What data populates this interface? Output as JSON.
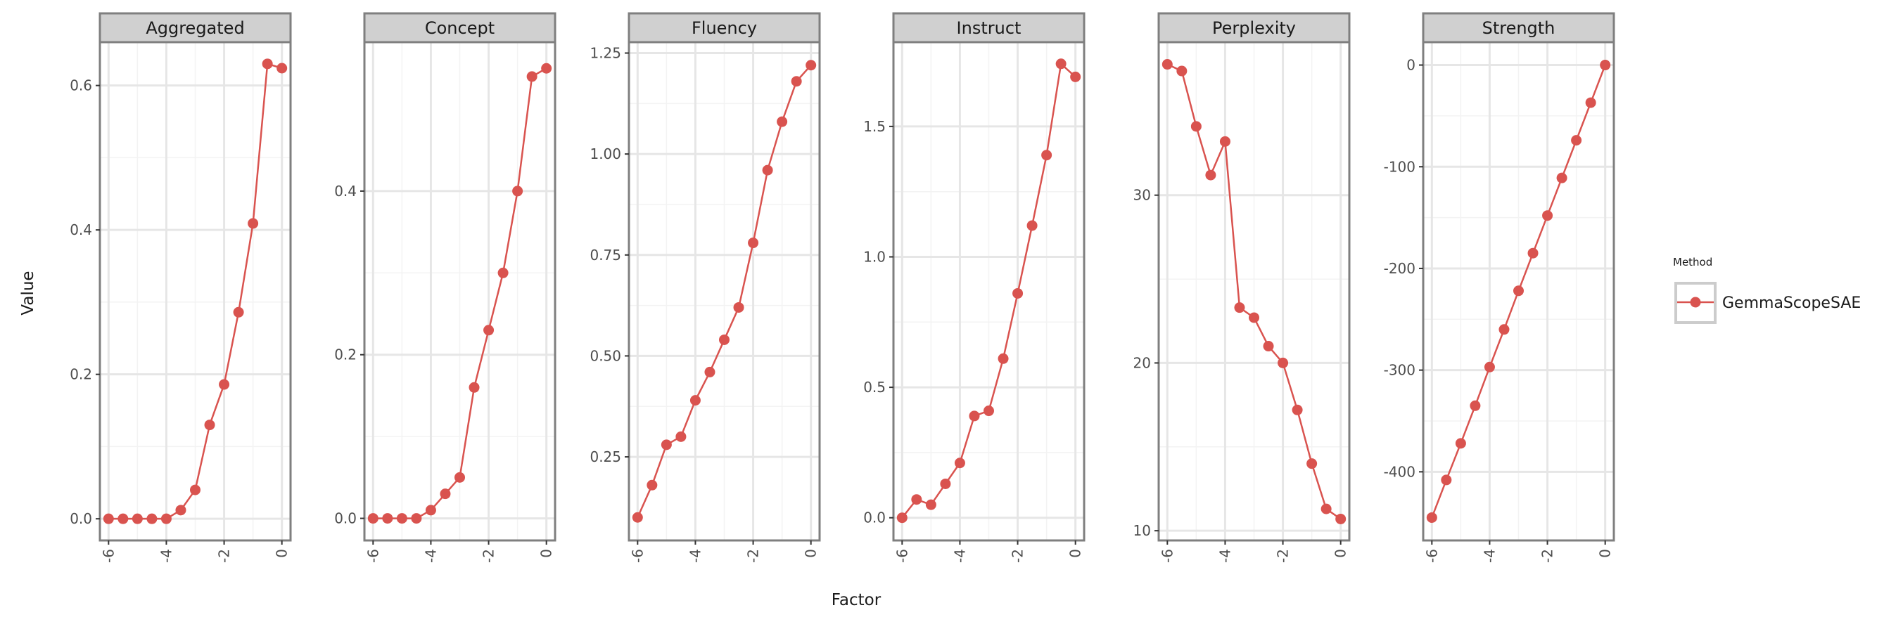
{
  "chart_data": {
    "type": "line",
    "xlabel": "Factor",
    "ylabel": "Value",
    "legend": {
      "title": "Method",
      "position": "right",
      "entries": [
        "GemmaScopeSAE"
      ]
    },
    "colors": {
      "series": "#d9534f",
      "strip_fill": "#d0d0d0",
      "frame": "#7f7f7f",
      "grid_major": "#e6e6e6",
      "grid_minor": "#f3f3f3"
    },
    "grid": true,
    "x": [
      -6,
      -5.5,
      -5,
      -4.5,
      -4,
      -3.5,
      -3,
      -2.5,
      -2,
      -1.5,
      -1,
      -0.5,
      0
    ],
    "x_ticks": [
      -6,
      -4,
      -2,
      0
    ],
    "x_tick_labels": [
      "-6",
      "-4",
      "-2",
      "0"
    ],
    "panels": [
      {
        "title": "Aggregated",
        "xlim": [
          -6.3,
          0.3
        ],
        "ylim": [
          -0.03,
          0.66
        ],
        "y_ticks": [
          0.0,
          0.2,
          0.4,
          0.6
        ],
        "y_tick_labels": [
          "0.0",
          "0.2",
          "0.4",
          "0.6"
        ],
        "series": [
          {
            "name": "GemmaScopeSAE",
            "values": [
              0.0,
              0.0,
              0.0,
              0.0,
              0.0,
              0.012,
              0.04,
              0.13,
              0.186,
              0.286,
              0.409,
              0.63,
              0.624
            ]
          }
        ]
      },
      {
        "title": "Concept",
        "xlim": [
          -6.3,
          0.3
        ],
        "ylim": [
          -0.027,
          0.582
        ],
        "y_ticks": [
          0.0,
          0.2,
          0.4
        ],
        "y_tick_labels": [
          "0.0",
          "0.2",
          "0.4"
        ],
        "series": [
          {
            "name": "GemmaScopeSAE",
            "values": [
              0.0,
              0.0,
              0.0,
              0.0,
              0.01,
              0.03,
              0.05,
              0.16,
              0.23,
              0.3,
              0.4,
              0.54,
              0.55
            ]
          }
        ]
      },
      {
        "title": "Fluency",
        "xlim": [
          -6.3,
          0.3
        ],
        "ylim": [
          0.043,
          1.277
        ],
        "y_ticks": [
          0.25,
          0.5,
          0.75,
          1.0,
          1.25
        ],
        "y_tick_labels": [
          "0.25",
          "0.50",
          "0.75",
          "1.00",
          "1.25"
        ],
        "series": [
          {
            "name": "GemmaScopeSAE",
            "values": [
              0.1,
              0.18,
              0.28,
              0.3,
              0.39,
              0.46,
              0.54,
              0.62,
              0.78,
              0.96,
              1.08,
              1.18,
              1.22
            ]
          }
        ]
      },
      {
        "title": "Instruct",
        "xlim": [
          -6.3,
          0.3
        ],
        "ylim": [
          -0.087,
          1.823
        ],
        "y_ticks": [
          0.0,
          0.5,
          1.0,
          1.5
        ],
        "y_tick_labels": [
          "0.0",
          "0.5",
          "1.0",
          "1.5"
        ],
        "series": [
          {
            "name": "GemmaScopeSAE",
            "values": [
              0.0,
              0.07,
              0.05,
              0.13,
              0.21,
              0.39,
              0.41,
              0.61,
              0.86,
              1.12,
              1.39,
              1.74,
              1.69
            ]
          }
        ]
      },
      {
        "title": "Perplexity",
        "xlim": [
          -6.3,
          0.3
        ],
        "ylim": [
          9.42,
          39.12
        ],
        "y_ticks": [
          10,
          20,
          30
        ],
        "y_tick_labels": [
          "10",
          "20",
          "30"
        ],
        "series": [
          {
            "name": "GemmaScopeSAE",
            "values": [
              37.8,
              37.4,
              34.1,
              31.2,
              33.2,
              23.3,
              22.7,
              21.0,
              20.0,
              17.2,
              14.0,
              11.3,
              10.7
            ]
          }
        ]
      },
      {
        "title": "Strength",
        "xlim": [
          -6.3,
          0.3
        ],
        "ylim": [
          -467.5,
          22.5
        ],
        "y_ticks": [
          0,
          -100,
          -200,
          -300,
          -400
        ],
        "y_tick_labels": [
          "0",
          "-100",
          "-200",
          "-300",
          "-400"
        ],
        "series": [
          {
            "name": "GemmaScopeSAE",
            "values": [
              -445,
              -408,
              -372,
              -335,
              -297,
              -260,
              -222,
              -185,
              -148,
              -111,
              -74,
              -37,
              0
            ]
          }
        ]
      }
    ]
  }
}
